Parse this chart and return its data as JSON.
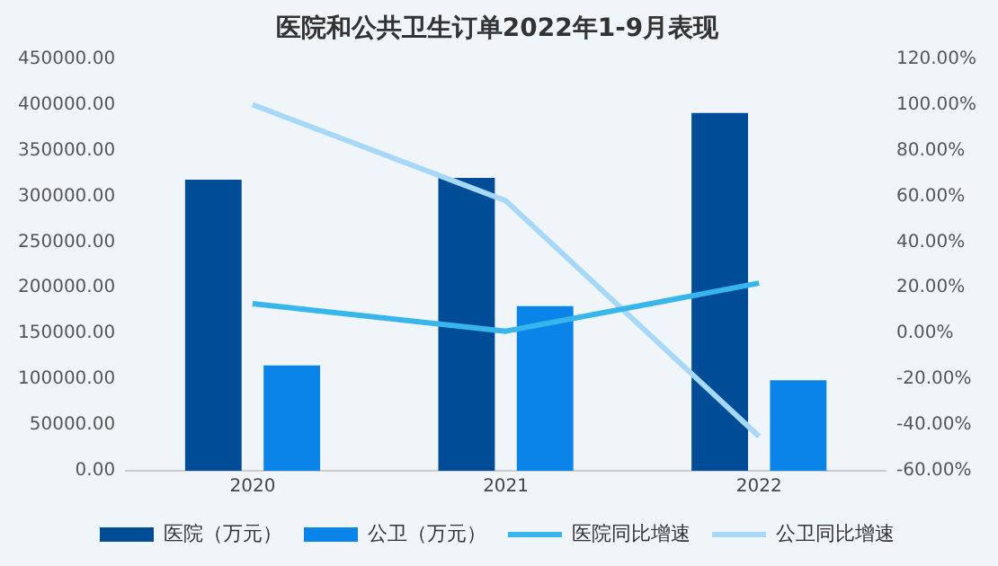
{
  "chart_data": {
    "type": "bar",
    "title": "医院和公共卫生订单2022年1-9月表现",
    "categories": [
      "2020",
      "2021",
      "2022"
    ],
    "series": [
      {
        "name": "医院（万元）",
        "color": "#004c97",
        "values": [
          318000,
          320000,
          391000
        ]
      },
      {
        "name": "公卫（万元）",
        "color": "#0a84e8",
        "values": [
          115000,
          180000,
          99000
        ]
      },
      {
        "name": "医院同比增速",
        "type": "line",
        "axis": "y2",
        "color": "#38b6ec",
        "values": [
          13,
          1,
          22
        ]
      },
      {
        "name": "公卫同比增速",
        "type": "line",
        "axis": "y2",
        "color": "#a8d8f8",
        "values": [
          100,
          58,
          -45
        ]
      }
    ],
    "ylim": [
      0,
      450000
    ],
    "yticks": [
      {
        "value": 0,
        "label": "0.00"
      },
      {
        "value": 50000,
        "label": "50000.00"
      },
      {
        "value": 100000,
        "label": "100000.00"
      },
      {
        "value": 150000,
        "label": "150000.00"
      },
      {
        "value": 200000,
        "label": "200000.00"
      },
      {
        "value": 250000,
        "label": "250000.00"
      },
      {
        "value": 300000,
        "label": "300000.00"
      },
      {
        "value": 350000,
        "label": "350000.00"
      },
      {
        "value": 400000,
        "label": "400000.00"
      },
      {
        "value": 450000,
        "label": "450000.00"
      }
    ],
    "y2lim": [
      -60,
      120
    ],
    "y2ticks": [
      {
        "value": -60,
        "label": "-60.00%"
      },
      {
        "value": -40,
        "label": "-40.00%"
      },
      {
        "value": -20,
        "label": "-20.00%"
      },
      {
        "value": 0,
        "label": "0.00%"
      },
      {
        "value": 20,
        "label": "20.00%"
      },
      {
        "value": 40,
        "label": "40.00%"
      },
      {
        "value": 60,
        "label": "60.00%"
      },
      {
        "value": 80,
        "label": "80.00%"
      },
      {
        "value": 100,
        "label": "100.00%"
      },
      {
        "value": 120,
        "label": "120.00%"
      }
    ],
    "grid": false,
    "legend": "bottom",
    "marker": "none"
  }
}
